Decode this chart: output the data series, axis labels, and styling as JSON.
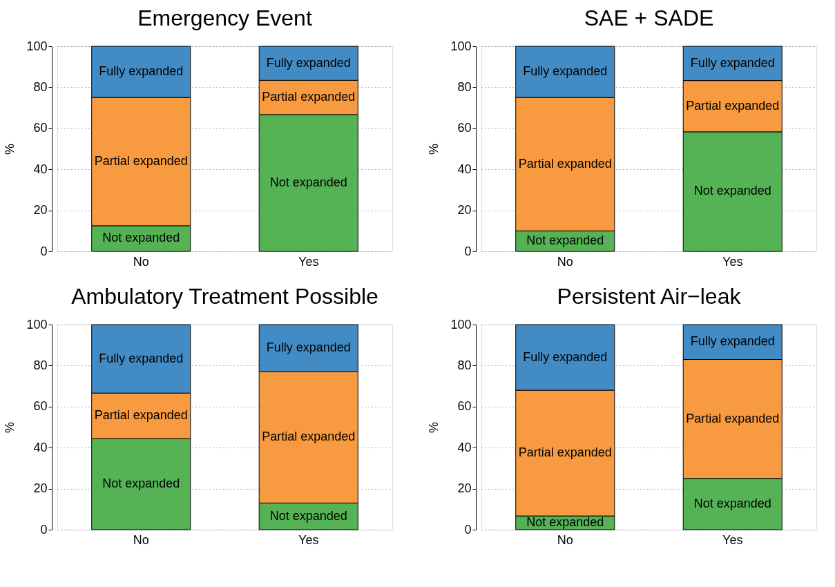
{
  "chart_data": [
    {
      "type": "bar",
      "title": "Emergency Event",
      "ylabel": "%",
      "categories": [
        "No",
        "Yes"
      ],
      "stacked": true,
      "ylim": [
        0,
        100
      ],
      "yticks": [
        0,
        20,
        40,
        60,
        80,
        100
      ],
      "grid": "y",
      "series": [
        {
          "name": "Not expanded",
          "color": "#55b355",
          "values": [
            12.5,
            66.7
          ]
        },
        {
          "name": "Partial expanded",
          "color": "#f79a40",
          "values": [
            62.5,
            16.7
          ]
        },
        {
          "name": "Fully expanded",
          "color": "#428bc4",
          "values": [
            25,
            16.6
          ]
        }
      ]
    },
    {
      "type": "bar",
      "title": "SAE + SADE",
      "ylabel": "%",
      "categories": [
        "No",
        "Yes"
      ],
      "stacked": true,
      "ylim": [
        0,
        100
      ],
      "yticks": [
        0,
        20,
        40,
        60,
        80,
        100
      ],
      "grid": "y",
      "series": [
        {
          "name": "Not expanded",
          "color": "#55b355",
          "values": [
            10,
            58.3
          ]
        },
        {
          "name": "Partial expanded",
          "color": "#f79a40",
          "values": [
            65,
            25
          ]
        },
        {
          "name": "Fully expanded",
          "color": "#428bc4",
          "values": [
            25,
            16.7
          ]
        }
      ]
    },
    {
      "type": "bar",
      "title": "Ambulatory Treatment Possible",
      "ylabel": "%",
      "categories": [
        "No",
        "Yes"
      ],
      "stacked": true,
      "ylim": [
        0,
        100
      ],
      "yticks": [
        0,
        20,
        40,
        60,
        80,
        100
      ],
      "grid": "y",
      "series": [
        {
          "name": "Not expanded",
          "color": "#55b355",
          "values": [
            44.4,
            13
          ]
        },
        {
          "name": "Partial expanded",
          "color": "#f79a40",
          "values": [
            22.2,
            64
          ]
        },
        {
          "name": "Fully expanded",
          "color": "#428bc4",
          "values": [
            33.4,
            23
          ]
        }
      ]
    },
    {
      "type": "bar",
      "title": "Persistent Air−leak",
      "ylabel": "%",
      "categories": [
        "No",
        "Yes"
      ],
      "stacked": true,
      "ylim": [
        0,
        100
      ],
      "yticks": [
        0,
        20,
        40,
        60,
        80,
        100
      ],
      "grid": "y",
      "series": [
        {
          "name": "Not expanded",
          "color": "#55b355",
          "values": [
            6.7,
            25
          ]
        },
        {
          "name": "Partial expanded",
          "color": "#f79a40",
          "values": [
            61.3,
            58
          ]
        },
        {
          "name": "Fully expanded",
          "color": "#428bc4",
          "values": [
            32,
            17
          ]
        }
      ]
    }
  ]
}
